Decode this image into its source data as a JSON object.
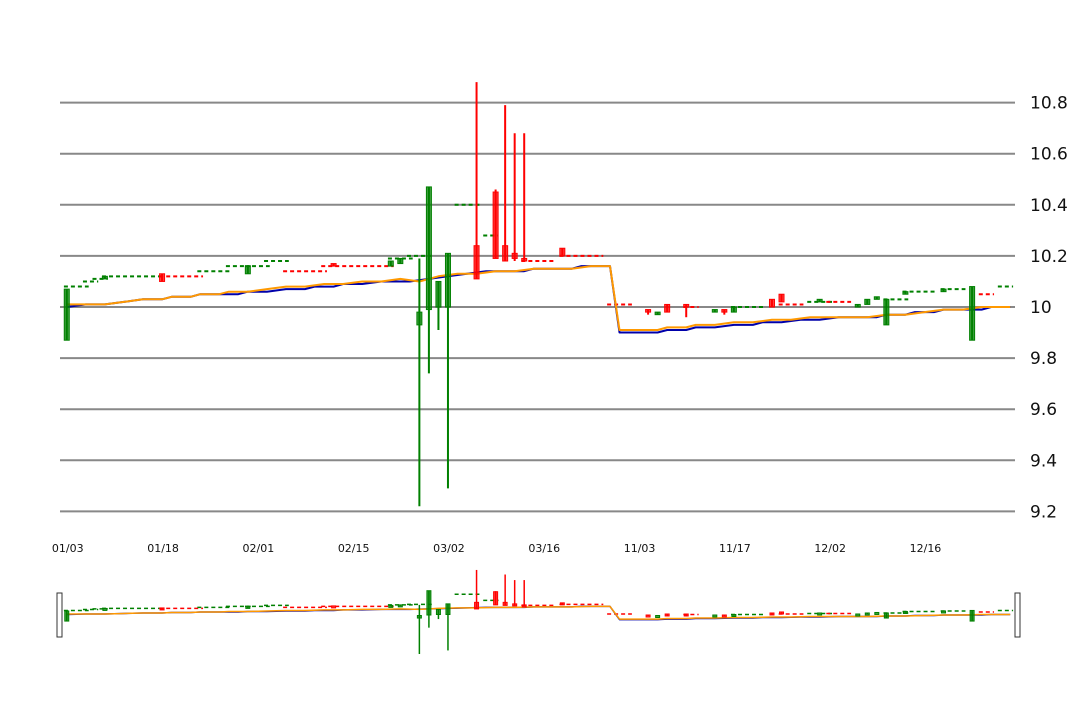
{
  "chart_data": {
    "type": "candlestick",
    "y_axis": {
      "ticks": [
        "9.2",
        "9.4",
        "9.6",
        "9.8",
        "10",
        "10.2",
        "10.4",
        "10.6",
        "10.8"
      ],
      "range": [
        9.2,
        10.8
      ],
      "position": "right"
    },
    "x_axis": {
      "tick_labels": [
        "01/03",
        "01/18",
        "02/01",
        "02/15",
        "03/02",
        "03/16",
        "11/03",
        "11/17",
        "12/02",
        "12/16"
      ]
    },
    "grid": true,
    "navigator": true,
    "colors": {
      "up": "#008000",
      "down": "#ff0000",
      "line_blue": "#0000aa",
      "line_orange": "#ff9900",
      "grid": "#888888"
    },
    "candles": [
      {
        "i": 0,
        "open": 9.87,
        "high": 10.07,
        "low": 9.87,
        "close": 10.07
      },
      {
        "i": 4,
        "open": 10.11,
        "high": 10.12,
        "low": 10.11,
        "close": 10.12
      },
      {
        "i": 10,
        "open": 10.13,
        "high": 10.13,
        "low": 10.1,
        "close": 10.1
      },
      {
        "i": 19,
        "open": 10.13,
        "high": 10.16,
        "low": 10.13,
        "close": 10.16
      },
      {
        "i": 28,
        "open": 10.17,
        "high": 10.17,
        "low": 10.16,
        "close": 10.16
      },
      {
        "i": 34,
        "open": 10.16,
        "high": 10.18,
        "low": 10.16,
        "close": 10.18
      },
      {
        "i": 35,
        "open": 10.17,
        "high": 10.19,
        "low": 10.17,
        "close": 10.19
      },
      {
        "i": 37,
        "open": 9.93,
        "high": 10.19,
        "low": 9.22,
        "close": 9.98
      },
      {
        "i": 38,
        "open": 9.99,
        "high": 10.47,
        "low": 9.74,
        "close": 10.47
      },
      {
        "i": 39,
        "open": 10.0,
        "high": 10.1,
        "low": 9.91,
        "close": 10.1
      },
      {
        "i": 40,
        "open": 10.0,
        "high": 10.21,
        "low": 9.29,
        "close": 10.21
      },
      {
        "i": 43,
        "open": 10.24,
        "high": 10.88,
        "low": 10.11,
        "close": 10.11
      },
      {
        "i": 45,
        "open": 10.45,
        "high": 10.46,
        "low": 10.19,
        "close": 10.19
      },
      {
        "i": 46,
        "open": 10.24,
        "high": 10.79,
        "low": 10.18,
        "close": 10.18
      },
      {
        "i": 47,
        "open": 10.21,
        "high": 10.68,
        "low": 10.18,
        "close": 10.19
      },
      {
        "i": 48,
        "open": 10.19,
        "high": 10.68,
        "low": 10.18,
        "close": 10.18
      },
      {
        "i": 52,
        "open": 10.23,
        "high": 10.23,
        "low": 10.2,
        "close": 10.2
      },
      {
        "i": 61,
        "open": 9.99,
        "high": 9.99,
        "low": 9.97,
        "close": 9.98
      },
      {
        "i": 62,
        "open": 9.97,
        "high": 9.98,
        "low": 9.97,
        "close": 9.98
      },
      {
        "i": 63,
        "open": 10.01,
        "high": 10.01,
        "low": 9.98,
        "close": 9.98
      },
      {
        "i": 65,
        "open": 10.01,
        "high": 10.01,
        "low": 9.96,
        "close": 10.0
      },
      {
        "i": 68,
        "open": 9.98,
        "high": 9.99,
        "low": 9.98,
        "close": 9.99
      },
      {
        "i": 69,
        "open": 9.99,
        "high": 9.99,
        "low": 9.97,
        "close": 9.98
      },
      {
        "i": 70,
        "open": 9.98,
        "high": 10.0,
        "low": 9.98,
        "close": 10.0
      },
      {
        "i": 74,
        "open": 10.03,
        "high": 10.03,
        "low": 10.0,
        "close": 10.0
      },
      {
        "i": 75,
        "open": 10.05,
        "high": 10.05,
        "low": 10.02,
        "close": 10.02
      },
      {
        "i": 79,
        "open": 10.02,
        "high": 10.03,
        "low": 10.02,
        "close": 10.03
      },
      {
        "i": 83,
        "open": 10.0,
        "high": 10.01,
        "low": 10.0,
        "close": 10.01
      },
      {
        "i": 84,
        "open": 10.01,
        "high": 10.03,
        "low": 10.01,
        "close": 10.03
      },
      {
        "i": 85,
        "open": 10.03,
        "high": 10.04,
        "low": 10.03,
        "close": 10.04
      },
      {
        "i": 86,
        "open": 9.93,
        "high": 10.03,
        "low": 9.93,
        "close": 10.03
      },
      {
        "i": 88,
        "open": 10.05,
        "high": 10.06,
        "low": 10.05,
        "close": 10.06
      },
      {
        "i": 92,
        "open": 10.06,
        "high": 10.07,
        "low": 10.06,
        "close": 10.07
      },
      {
        "i": 95,
        "open": 9.87,
        "high": 10.08,
        "low": 9.87,
        "close": 10.08
      }
    ],
    "dashed_steps": [
      {
        "x0": 0,
        "x1": 2,
        "y": 10.08,
        "dir": "up"
      },
      {
        "x0": 2,
        "x1": 3,
        "y": 10.1,
        "dir": "up"
      },
      {
        "x0": 3,
        "x1": 4,
        "y": 10.11,
        "dir": "up"
      },
      {
        "x0": 4,
        "x1": 10,
        "y": 10.12,
        "dir": "up"
      },
      {
        "x0": 10,
        "x1": 14,
        "y": 10.12,
        "dir": "down"
      },
      {
        "x0": 14,
        "x1": 17,
        "y": 10.14,
        "dir": "up"
      },
      {
        "x0": 17,
        "x1": 19,
        "y": 10.16,
        "dir": "up"
      },
      {
        "x0": 19,
        "x1": 21,
        "y": 10.16,
        "dir": "up"
      },
      {
        "x0": 21,
        "x1": 23,
        "y": 10.18,
        "dir": "up"
      },
      {
        "x0": 23,
        "x1": 27,
        "y": 10.14,
        "dir": "down"
      },
      {
        "x0": 27,
        "x1": 34,
        "y": 10.16,
        "dir": "down"
      },
      {
        "x0": 34,
        "x1": 36,
        "y": 10.19,
        "dir": "up"
      },
      {
        "x0": 36,
        "x1": 38,
        "y": 10.2,
        "dir": "up"
      },
      {
        "x0": 41,
        "x1": 43,
        "y": 10.4,
        "dir": "up"
      },
      {
        "x0": 44,
        "x1": 45,
        "y": 10.28,
        "dir": "up"
      },
      {
        "x0": 48,
        "x1": 51,
        "y": 10.18,
        "dir": "down"
      },
      {
        "x0": 52,
        "x1": 56,
        "y": 10.2,
        "dir": "down"
      },
      {
        "x0": 57,
        "x1": 59,
        "y": 10.01,
        "dir": "down"
      },
      {
        "x0": 65,
        "x1": 66,
        "y": 10.0,
        "dir": "down"
      },
      {
        "x0": 70,
        "x1": 73,
        "y": 10.0,
        "dir": "up"
      },
      {
        "x0": 75,
        "x1": 77,
        "y": 10.01,
        "dir": "down"
      },
      {
        "x0": 78,
        "x1": 80,
        "y": 10.02,
        "dir": "up"
      },
      {
        "x0": 80,
        "x1": 82,
        "y": 10.02,
        "dir": "down"
      },
      {
        "x0": 86,
        "x1": 88,
        "y": 10.03,
        "dir": "up"
      },
      {
        "x0": 88,
        "x1": 91,
        "y": 10.06,
        "dir": "up"
      },
      {
        "x0": 92,
        "x1": 94,
        "y": 10.07,
        "dir": "up"
      },
      {
        "x0": 96,
        "x1": 97,
        "y": 10.05,
        "dir": "down"
      },
      {
        "x0": 98,
        "x1": 99,
        "y": 10.08,
        "dir": "up"
      }
    ],
    "line_blue": [
      [
        0,
        10.0
      ],
      [
        2,
        10.01
      ],
      [
        4,
        10.01
      ],
      [
        6,
        10.02
      ],
      [
        8,
        10.03
      ],
      [
        10,
        10.03
      ],
      [
        11,
        10.04
      ],
      [
        13,
        10.04
      ],
      [
        14,
        10.05
      ],
      [
        16,
        10.05
      ],
      [
        18,
        10.05
      ],
      [
        19,
        10.06
      ],
      [
        21,
        10.06
      ],
      [
        23,
        10.07
      ],
      [
        25,
        10.07
      ],
      [
        26,
        10.08
      ],
      [
        28,
        10.08
      ],
      [
        29,
        10.09
      ],
      [
        31,
        10.09
      ],
      [
        33,
        10.1
      ],
      [
        36,
        10.1
      ],
      [
        38,
        10.11
      ],
      [
        40,
        10.12
      ],
      [
        42,
        10.13
      ],
      [
        44,
        10.14
      ],
      [
        46,
        10.14
      ],
      [
        48,
        10.14
      ],
      [
        49,
        10.15
      ],
      [
        51,
        10.15
      ],
      [
        53,
        10.15
      ],
      [
        54,
        10.16
      ],
      [
        56,
        10.16
      ],
      [
        57,
        10.16
      ],
      [
        58,
        9.9
      ],
      [
        60,
        9.9
      ],
      [
        62,
        9.9
      ],
      [
        63,
        9.91
      ],
      [
        65,
        9.91
      ],
      [
        66,
        9.92
      ],
      [
        68,
        9.92
      ],
      [
        70,
        9.93
      ],
      [
        72,
        9.93
      ],
      [
        73,
        9.94
      ],
      [
        75,
        9.94
      ],
      [
        77,
        9.95
      ],
      [
        79,
        9.95
      ],
      [
        81,
        9.96
      ],
      [
        83,
        9.96
      ],
      [
        85,
        9.96
      ],
      [
        86,
        9.97
      ],
      [
        88,
        9.97
      ],
      [
        89,
        9.98
      ],
      [
        91,
        9.98
      ],
      [
        92,
        9.99
      ],
      [
        94,
        9.99
      ],
      [
        96,
        9.99
      ],
      [
        97,
        10.0
      ],
      [
        99,
        10.0
      ]
    ],
    "line_orange": [
      [
        0,
        10.01
      ],
      [
        2,
        10.01
      ],
      [
        4,
        10.01
      ],
      [
        6,
        10.02
      ],
      [
        8,
        10.03
      ],
      [
        10,
        10.03
      ],
      [
        11,
        10.04
      ],
      [
        13,
        10.04
      ],
      [
        14,
        10.05
      ],
      [
        16,
        10.05
      ],
      [
        17,
        10.06
      ],
      [
        19,
        10.06
      ],
      [
        21,
        10.07
      ],
      [
        23,
        10.08
      ],
      [
        25,
        10.08
      ],
      [
        27,
        10.09
      ],
      [
        29,
        10.09
      ],
      [
        31,
        10.1
      ],
      [
        33,
        10.1
      ],
      [
        35,
        10.11
      ],
      [
        37,
        10.1
      ],
      [
        39,
        10.12
      ],
      [
        41,
        10.13
      ],
      [
        43,
        10.13
      ],
      [
        45,
        10.14
      ],
      [
        47,
        10.14
      ],
      [
        49,
        10.15
      ],
      [
        51,
        10.15
      ],
      [
        53,
        10.15
      ],
      [
        55,
        10.16
      ],
      [
        57,
        10.16
      ],
      [
        58,
        9.91
      ],
      [
        60,
        9.91
      ],
      [
        62,
        9.91
      ],
      [
        63,
        9.92
      ],
      [
        65,
        9.92
      ],
      [
        66,
        9.93
      ],
      [
        68,
        9.93
      ],
      [
        70,
        9.94
      ],
      [
        72,
        9.94
      ],
      [
        74,
        9.95
      ],
      [
        76,
        9.95
      ],
      [
        78,
        9.96
      ],
      [
        80,
        9.96
      ],
      [
        82,
        9.96
      ],
      [
        84,
        9.96
      ],
      [
        86,
        9.97
      ],
      [
        88,
        9.97
      ],
      [
        90,
        9.98
      ],
      [
        92,
        9.99
      ],
      [
        94,
        9.99
      ],
      [
        96,
        10.0
      ],
      [
        99,
        10.0
      ]
    ]
  }
}
